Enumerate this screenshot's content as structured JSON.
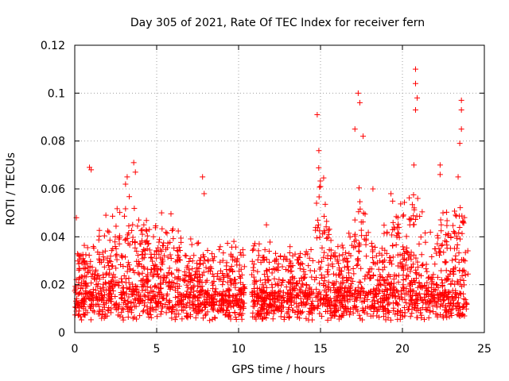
{
  "chart_data": {
    "type": "scatter",
    "title": "Day 305 of 2021, Rate Of TEC Index for receiver fern",
    "xlabel": "GPS time / hours",
    "ylabel": "ROTI / TECUs",
    "xlim": [
      0,
      25
    ],
    "ylim": [
      0,
      0.12
    ],
    "x_ticks": [
      0,
      5,
      10,
      15,
      20,
      25
    ],
    "x_tick_labels": [
      "0",
      "5",
      "10",
      "15",
      "20",
      "25"
    ],
    "y_ticks": [
      0,
      0.02,
      0.04,
      0.06,
      0.08,
      0.1,
      0.12
    ],
    "y_tick_labels": [
      "0",
      "0.02",
      "0.04",
      "0.06",
      "0.08",
      "0.1",
      "0.12"
    ],
    "grid": true,
    "marker": "+",
    "color": "#ff0000",
    "series": [
      {
        "name": "ROTI",
        "x_range_hours": [
          0,
          24
        ],
        "data_gap_hours": [
          10.4,
          10.8
        ],
        "typical_band": [
          0.005,
          0.025
        ],
        "notable_peaks": [
          {
            "x": 0.1,
            "y": 0.048
          },
          {
            "x": 0.9,
            "y": 0.069
          },
          {
            "x": 1.0,
            "y": 0.068
          },
          {
            "x": 1.9,
            "y": 0.049
          },
          {
            "x": 3.1,
            "y": 0.062
          },
          {
            "x": 3.2,
            "y": 0.065
          },
          {
            "x": 3.6,
            "y": 0.071
          },
          {
            "x": 3.7,
            "y": 0.067
          },
          {
            "x": 5.3,
            "y": 0.05
          },
          {
            "x": 7.8,
            "y": 0.065
          },
          {
            "x": 7.9,
            "y": 0.058
          },
          {
            "x": 11.7,
            "y": 0.045
          },
          {
            "x": 14.8,
            "y": 0.091
          },
          {
            "x": 14.9,
            "y": 0.076
          },
          {
            "x": 15.0,
            "y": 0.061
          },
          {
            "x": 17.1,
            "y": 0.085
          },
          {
            "x": 17.3,
            "y": 0.1
          },
          {
            "x": 17.4,
            "y": 0.096
          },
          {
            "x": 17.6,
            "y": 0.082
          },
          {
            "x": 18.2,
            "y": 0.06
          },
          {
            "x": 19.3,
            "y": 0.058
          },
          {
            "x": 20.8,
            "y": 0.11
          },
          {
            "x": 20.8,
            "y": 0.104
          },
          {
            "x": 20.9,
            "y": 0.098
          },
          {
            "x": 20.8,
            "y": 0.093
          },
          {
            "x": 20.7,
            "y": 0.07
          },
          {
            "x": 22.3,
            "y": 0.07
          },
          {
            "x": 22.3,
            "y": 0.066
          },
          {
            "x": 23.6,
            "y": 0.097
          },
          {
            "x": 23.6,
            "y": 0.093
          },
          {
            "x": 23.6,
            "y": 0.085
          },
          {
            "x": 23.5,
            "y": 0.079
          },
          {
            "x": 23.4,
            "y": 0.065
          }
        ]
      }
    ]
  }
}
